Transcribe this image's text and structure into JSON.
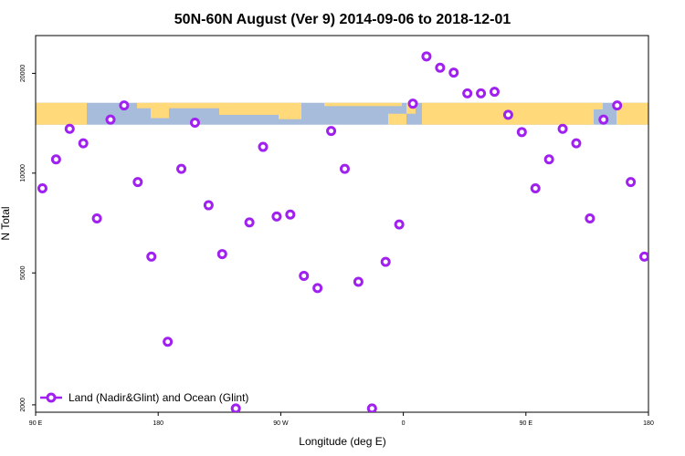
{
  "chart_data": {
    "type": "scatter",
    "title": "50N-60N August (Ver 9)   2014-09-06 to 2018-12-01",
    "xlabel": "Longitude (deg E)",
    "ylabel": "N Total",
    "xlim": [
      90,
      540
    ],
    "ylim": [
      1900,
      26000
    ],
    "ylog": true,
    "x_ticks": [
      {
        "value": 90,
        "label": "90 E"
      },
      {
        "value": 180,
        "label": "180"
      },
      {
        "value": 270,
        "label": "90 W"
      },
      {
        "value": 360,
        "label": "0"
      },
      {
        "value": 450,
        "label": "90 E"
      },
      {
        "value": 540,
        "label": "180"
      }
    ],
    "y_ticks": [
      {
        "value": 2000,
        "label": "2000"
      },
      {
        "value": 5000,
        "label": "5000"
      },
      {
        "value": 10000,
        "label": "10000"
      },
      {
        "value": 20000,
        "label": "20000"
      }
    ],
    "grid": false,
    "legend_position": "bottom-left",
    "map_band": {
      "y_from": 14000,
      "y_to": 16300,
      "ocean_color": "#a6bcda",
      "land_color": "#ffd97a"
    },
    "series": [
      {
        "name": "Land (Nadir&Glint) and Ocean (Glint)",
        "color": "#a020f0",
        "x": [
          95,
          105,
          115,
          125,
          135,
          145,
          155,
          165,
          175,
          187,
          197,
          207,
          217,
          227,
          237,
          247,
          257,
          267,
          277,
          287,
          297,
          307,
          317,
          327,
          337,
          347,
          357,
          367,
          377,
          387,
          397,
          407,
          417,
          427,
          437,
          447,
          457,
          467,
          477,
          487,
          497,
          507,
          517,
          527,
          537
        ],
        "y": [
          9000,
          11000,
          13600,
          12300,
          7300,
          14500,
          16000,
          9400,
          5600,
          3100,
          10300,
          14200,
          8000,
          5700,
          1950,
          7100,
          12000,
          7400,
          7500,
          4900,
          4500,
          13400,
          10300,
          4700,
          1950,
          5400,
          7000,
          16200,
          22500,
          20800,
          20100,
          17400,
          17400,
          17600,
          15000,
          13300,
          9000,
          11000,
          13600,
          12300,
          7300,
          14500,
          16000,
          9400,
          5600
        ]
      }
    ]
  }
}
